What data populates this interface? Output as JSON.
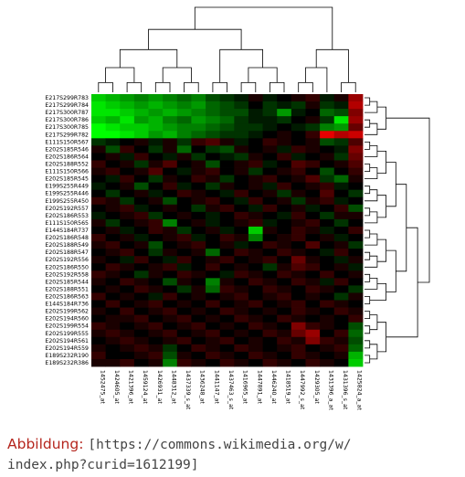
{
  "chart_data": {
    "type": "heatmap",
    "title": "",
    "xlabel": "",
    "ylabel": "",
    "colors": {
      "low": "#00ff00",
      "mid": "#000000",
      "high": "#ff0000"
    },
    "columns": [
      "1452475_at",
      "1424605_at",
      "1421396_at",
      "1459124_at",
      "1426931_at",
      "1448312_at",
      "1437339_s_at",
      "1436248_at",
      "1441147_at",
      "1437463_s_at",
      "1416965_at",
      "1447891_at",
      "1446240_at",
      "1418519_at",
      "1447992_s_at",
      "1429305_at",
      "1431396_a_at",
      "1431396_s_at",
      "1425824_a_at"
    ],
    "rows": [
      "E217S299R783",
      "E217S299R784",
      "E217S300R787",
      "E217S300R786",
      "E217S300R785",
      "E217S299R782",
      "E111S150R567",
      "E202S185R546",
      "E202S186R564",
      "E202S188R552",
      "E111S150R566",
      "E202S185R545",
      "E199S255R449",
      "E199S255R446",
      "E199S255R450",
      "E202S192R557",
      "E202S186R553",
      "E111S150R565",
      "E144S184R737",
      "E202S186R548",
      "E202S188R549",
      "E202S188R547",
      "E202S192R556",
      "E202S186R550",
      "E202S192R558",
      "E202S185R544",
      "E202S188R551",
      "E202S186R563",
      "E144S184R736",
      "E202S199R562",
      "E202S194R560",
      "E202S199R554",
      "E202S199R555",
      "E202S194R561",
      "E202S194R559",
      "E189S232R190",
      "E189S232R386"
    ],
    "values": [
      [
        -0.8,
        -0.7,
        -0.6,
        -0.5,
        -0.6,
        -0.5,
        -0.4,
        -0.5,
        -0.3,
        -0.2,
        -0.1,
        0.1,
        -0.1,
        0.0,
        0.1,
        0.2,
        -0.1,
        0.1,
        0.6
      ],
      [
        -0.9,
        -0.8,
        -0.7,
        -0.6,
        -0.7,
        -0.6,
        -0.5,
        -0.6,
        -0.4,
        -0.3,
        -0.2,
        0.0,
        -0.2,
        -0.1,
        -0.2,
        0.1,
        -0.2,
        -0.1,
        0.7
      ],
      [
        -0.9,
        -0.9,
        -0.8,
        -0.7,
        -0.6,
        -0.7,
        -0.6,
        -0.5,
        -0.4,
        -0.3,
        -0.3,
        -0.1,
        -0.2,
        -0.6,
        -0.1,
        0.0,
        -0.4,
        -0.3,
        0.5
      ],
      [
        -0.8,
        -0.7,
        -0.9,
        -0.6,
        -0.7,
        -0.5,
        -0.4,
        -0.6,
        -0.5,
        -0.4,
        -0.2,
        -0.1,
        -0.1,
        -0.2,
        0.0,
        0.1,
        -0.2,
        -0.9,
        0.6
      ],
      [
        -1.0,
        -0.9,
        -0.8,
        -0.8,
        -0.7,
        -0.6,
        -0.5,
        -0.5,
        -0.4,
        -0.3,
        -0.2,
        -0.2,
        -0.1,
        0.0,
        -0.1,
        -0.2,
        -0.5,
        -0.6,
        0.4
      ],
      [
        -1.0,
        -1.0,
        -0.9,
        -0.8,
        -0.6,
        -0.7,
        -0.5,
        -0.4,
        -0.3,
        -0.2,
        -0.2,
        -0.1,
        0.0,
        0.1,
        0.0,
        0.2,
        0.9,
        0.7,
        0.8
      ],
      [
        -0.2,
        -0.1,
        0.0,
        0.1,
        -0.1,
        0.1,
        -0.2,
        0.2,
        0.3,
        0.1,
        -0.1,
        0.0,
        0.2,
        0.1,
        0.0,
        0.1,
        -0.3,
        -0.2,
        0.3
      ],
      [
        0.1,
        -0.3,
        0.2,
        0.0,
        -0.2,
        0.1,
        -0.4,
        0.0,
        -0.2,
        -0.3,
        0.1,
        0.0,
        0.1,
        -0.1,
        0.2,
        0.1,
        0.0,
        -0.1,
        0.5
      ],
      [
        0.0,
        0.1,
        -0.1,
        0.2,
        0.0,
        -0.1,
        0.1,
        -0.2,
        0.0,
        -0.1,
        -0.2,
        0.1,
        0.0,
        0.2,
        -0.1,
        0.0,
        0.1,
        -0.2,
        0.4
      ],
      [
        0.2,
        0.0,
        0.1,
        -0.2,
        0.1,
        0.3,
        0.0,
        0.1,
        -0.3,
        0.0,
        0.1,
        0.2,
        -0.1,
        0.0,
        0.3,
        0.2,
        0.0,
        0.1,
        0.3
      ],
      [
        0.1,
        0.2,
        0.0,
        0.1,
        0.3,
        0.0,
        -0.1,
        0.1,
        0.2,
        0.0,
        0.1,
        -0.2,
        0.0,
        0.1,
        0.2,
        0.0,
        -0.3,
        0.0,
        0.2
      ],
      [
        0.0,
        -0.1,
        0.2,
        0.0,
        -0.2,
        0.1,
        0.0,
        0.2,
        0.1,
        -0.2,
        0.0,
        0.1,
        0.2,
        0.0,
        0.1,
        0.3,
        -0.2,
        -0.4,
        0.1
      ],
      [
        -0.1,
        0.0,
        0.1,
        -0.3,
        0.0,
        0.2,
        -0.1,
        0.0,
        -0.2,
        0.1,
        0.0,
        0.1,
        -0.1,
        0.2,
        0.0,
        0.1,
        0.2,
        -0.1,
        0.0
      ],
      [
        0.0,
        -0.2,
        0.0,
        0.1,
        -0.1,
        0.0,
        0.2,
        0.1,
        0.0,
        -0.1,
        0.2,
        0.0,
        0.1,
        -0.2,
        0.1,
        0.0,
        0.3,
        0.0,
        -0.2
      ],
      [
        0.2,
        0.1,
        -0.2,
        0.0,
        0.1,
        -0.3,
        0.0,
        0.1,
        0.2,
        0.0,
        -0.1,
        0.2,
        0.0,
        0.1,
        -0.2,
        0.1,
        0.2,
        -0.1,
        0.0
      ],
      [
        0.0,
        0.1,
        0.2,
        -0.1,
        0.0,
        0.1,
        0.0,
        -0.2,
        0.1,
        0.2,
        0.0,
        -0.1,
        0.2,
        0.0,
        0.1,
        -0.1,
        0.0,
        0.2,
        -0.3
      ],
      [
        -0.1,
        0.0,
        0.1,
        0.2,
        -0.2,
        0.0,
        0.1,
        0.0,
        -0.1,
        0.0,
        0.2,
        0.1,
        0.0,
        -0.1,
        0.2,
        0.0,
        -0.2,
        0.1,
        0.1
      ],
      [
        0.1,
        -0.2,
        0.0,
        0.1,
        0.2,
        -0.5,
        0.0,
        0.1,
        -0.1,
        0.0,
        0.1,
        0.2,
        -0.1,
        0.0,
        0.1,
        0.2,
        0.0,
        -0.2,
        0.0
      ],
      [
        0.0,
        0.1,
        -0.1,
        0.0,
        0.2,
        0.1,
        -0.2,
        0.0,
        0.1,
        -0.1,
        0.0,
        -0.8,
        0.1,
        0.0,
        0.2,
        0.1,
        -0.1,
        0.0,
        0.2
      ],
      [
        0.2,
        0.0,
        0.1,
        -0.1,
        0.0,
        0.1,
        0.2,
        -0.1,
        0.0,
        0.2,
        0.1,
        -0.5,
        0.0,
        0.1,
        0.2,
        0.0,
        0.1,
        -0.1,
        0.0
      ],
      [
        0.1,
        0.2,
        0.0,
        0.1,
        -0.3,
        0.0,
        0.1,
        0.2,
        0.0,
        0.1,
        -0.1,
        0.0,
        0.2,
        0.1,
        0.0,
        0.3,
        0.0,
        0.1,
        -0.2
      ],
      [
        0.0,
        0.1,
        0.2,
        0.0,
        -0.2,
        0.1,
        0.0,
        0.1,
        -0.4,
        0.0,
        0.2,
        0.1,
        0.0,
        0.2,
        0.1,
        0.0,
        -0.1,
        0.2,
        0.0
      ],
      [
        0.1,
        0.0,
        -0.1,
        0.2,
        0.0,
        -0.1,
        0.2,
        0.0,
        0.1,
        0.2,
        0.0,
        0.1,
        0.2,
        0.0,
        0.4,
        0.1,
        0.0,
        -0.1,
        0.1
      ],
      [
        0.0,
        0.2,
        0.1,
        0.0,
        0.1,
        0.2,
        -0.1,
        0.0,
        0.2,
        0.0,
        0.1,
        0.0,
        -0.2,
        0.1,
        0.3,
        0.2,
        0.0,
        0.1,
        -0.1
      ],
      [
        0.2,
        0.1,
        0.0,
        -0.2,
        0.1,
        0.0,
        0.2,
        0.1,
        0.0,
        -0.1,
        0.2,
        0.1,
        0.0,
        0.2,
        0.1,
        0.0,
        0.2,
        0.0,
        0.1
      ],
      [
        0.1,
        0.0,
        0.2,
        0.1,
        0.0,
        -0.3,
        0.1,
        0.0,
        -0.5,
        0.1,
        0.0,
        0.2,
        0.1,
        0.0,
        0.2,
        0.1,
        -0.1,
        0.2,
        0.0
      ],
      [
        0.0,
        0.1,
        0.0,
        0.2,
        0.1,
        0.0,
        -0.2,
        0.1,
        -0.4,
        0.2,
        0.1,
        0.0,
        0.2,
        0.1,
        0.0,
        0.2,
        0.1,
        0.0,
        -0.2
      ],
      [
        0.2,
        0.0,
        0.1,
        0.0,
        -0.1,
        0.2,
        0.0,
        0.1,
        0.0,
        0.1,
        0.2,
        0.0,
        0.1,
        0.2,
        0.0,
        0.1,
        0.0,
        -0.2,
        0.1
      ],
      [
        0.0,
        0.2,
        0.0,
        0.1,
        0.2,
        0.0,
        0.1,
        0.0,
        0.2,
        0.0,
        0.1,
        0.2,
        0.0,
        0.1,
        0.2,
        0.0,
        0.2,
        0.1,
        0.0
      ],
      [
        0.1,
        0.0,
        0.2,
        0.0,
        0.1,
        0.2,
        0.0,
        0.1,
        0.0,
        0.2,
        0.1,
        0.0,
        0.1,
        0.0,
        0.2,
        0.1,
        0.0,
        0.2,
        0.1
      ],
      [
        0.0,
        0.1,
        0.1,
        0.2,
        0.0,
        0.1,
        0.2,
        0.0,
        0.1,
        0.0,
        0.2,
        0.1,
        0.0,
        0.2,
        0.1,
        0.0,
        0.1,
        0.0,
        0.2
      ],
      [
        0.2,
        0.1,
        0.0,
        0.1,
        0.2,
        0.0,
        0.1,
        0.2,
        0.0,
        0.1,
        0.0,
        0.2,
        0.1,
        0.0,
        0.5,
        0.2,
        0.1,
        0.0,
        -0.3
      ],
      [
        0.1,
        0.2,
        0.1,
        0.0,
        0.1,
        0.2,
        0.0,
        0.1,
        0.2,
        0.0,
        0.1,
        0.0,
        0.2,
        0.1,
        0.4,
        0.6,
        0.0,
        0.2,
        -0.4
      ],
      [
        0.0,
        0.1,
        0.2,
        0.1,
        0.0,
        0.1,
        0.2,
        0.0,
        0.1,
        0.2,
        0.0,
        0.1,
        0.0,
        0.2,
        0.1,
        0.5,
        0.2,
        0.1,
        -0.3
      ],
      [
        0.1,
        0.0,
        0.1,
        0.2,
        0.1,
        -0.2,
        0.0,
        0.2,
        0.1,
        0.0,
        0.2,
        0.1,
        0.0,
        0.1,
        0.2,
        0.0,
        0.1,
        0.2,
        -0.4
      ],
      [
        0.2,
        0.0,
        0.0,
        0.1,
        0.2,
        -0.3,
        0.1,
        0.0,
        0.2,
        0.1,
        0.0,
        0.2,
        0.1,
        0.0,
        0.2,
        0.1,
        0.0,
        0.1,
        -0.7
      ],
      [
        0.1,
        0.1,
        0.2,
        0.0,
        0.1,
        -0.5,
        0.2,
        0.1,
        0.0,
        0.2,
        0.1,
        0.0,
        0.2,
        0.1,
        0.0,
        0.2,
        0.1,
        0.0,
        -0.8
      ]
    ],
    "column_dendrogram": "present",
    "row_dendrogram": "present",
    "legend": "none"
  },
  "caption": {
    "label": "Abbildung:",
    "url_line1": "[https://commons.wikimedia.org/w/",
    "url_line2": "index.php?curid=1612199]"
  }
}
